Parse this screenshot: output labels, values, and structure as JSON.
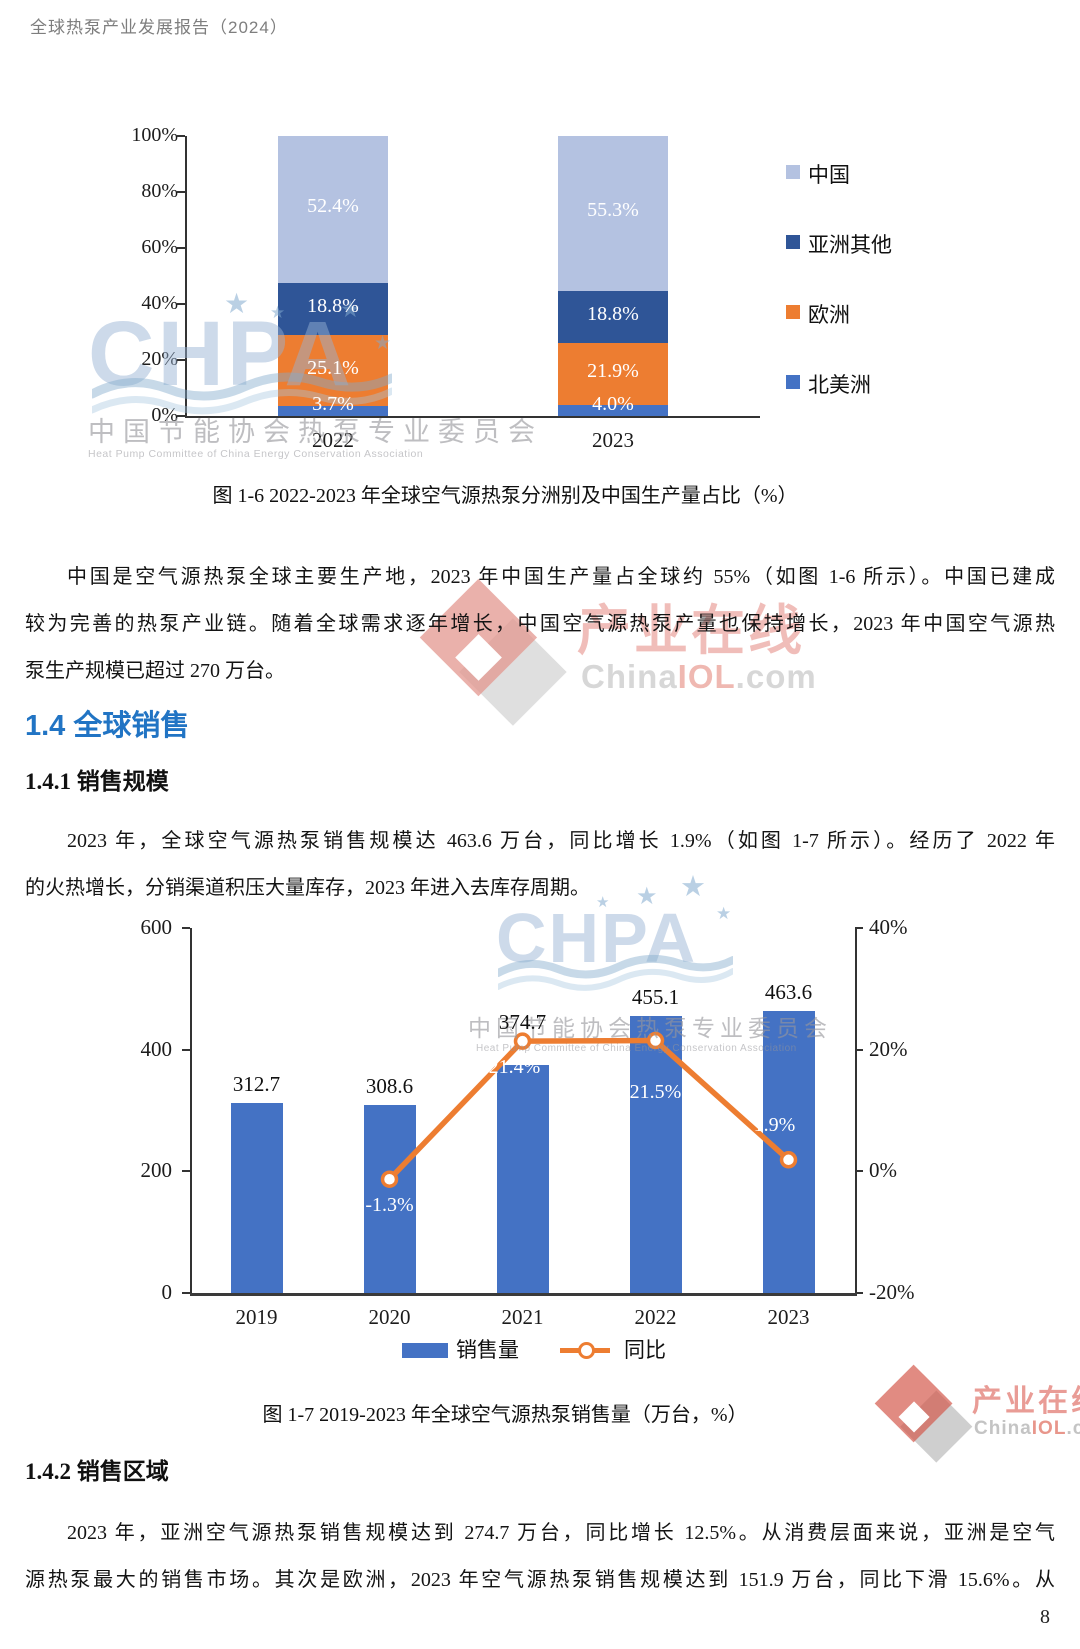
{
  "header": {
    "title": "全球热泵产业发展报告（2024）"
  },
  "page_number": "8",
  "watermark_chpa": {
    "logo": "CHPA",
    "star": "★",
    "org_cn": "中国节能协会热泵专业委员会",
    "org_en": "Heat Pump Committee of China Energy Conservation Association"
  },
  "watermark_iol": {
    "name": "产业在线",
    "domain_china": "China",
    "domain_iol": "IOL",
    "domain_com": ".com"
  },
  "sections": {
    "s14": "1.4 全球销售",
    "s141": "1.4.1 销售规模",
    "s142": "1.4.2 销售区域"
  },
  "paragraphs": {
    "p1": [
      "中国是空气源热泵全球主要生产地，2023 年中国生产量占全球约 55%（如图 1-6 所示）。中国已建成",
      "较为完善的热泵产业链。随着全球需求逐年增长，中国空气源热泵产量也保持增长，2023 年中国空气源热",
      "泵生产规模已超过 270 万台。"
    ],
    "p2": [
      "2023 年，全球空气源热泵销售规模达 463.6 万台，同比增长 1.9%（如图 1-7 所示）。经历了 2022 年",
      "的火热增长，分销渠道积压大量库存，2023 年进入去库存周期。"
    ],
    "p3": [
      "2023 年，亚洲空气源热泵销售规模达到 274.7 万台，同比增长 12.5%。从消费层面来说，亚洲是空气",
      "源热泵最大的销售市场。其次是欧洲，2023 年空气源热泵销售规模达到 151.9 万台，同比下滑 15.6%。从"
    ]
  },
  "captions": {
    "fig16": "图 1-6 2022-2023 年全球空气源热泵分洲别及中国生产量占比（%）",
    "fig17": "图 1-7 2019-2023 年全球空气源热泵销售量（万台，%）"
  },
  "chart_data": [
    {
      "type": "bar",
      "subtype": "stacked-100-percent",
      "title": "图 1-6 2022-2023 年全球空气源热泵分洲别及中国生产量占比（%）",
      "categories": [
        "2022",
        "2023"
      ],
      "series": [
        {
          "name": "北美洲",
          "color": "#4472C4",
          "values": [
            3.7,
            4.0
          ]
        },
        {
          "name": "欧洲",
          "color": "#ED7D31",
          "values": [
            25.1,
            21.9
          ]
        },
        {
          "name": "亚洲其他",
          "color": "#2F5597",
          "values": [
            18.8,
            18.8
          ]
        },
        {
          "name": "中国",
          "color": "#B4C2E1",
          "values": [
            52.4,
            55.3
          ]
        }
      ],
      "legend_order": [
        "中国",
        "亚洲其他",
        "欧洲",
        "北美洲"
      ],
      "y_ticks": [
        "100%",
        "80%",
        "60%",
        "40%",
        "20%",
        "0%"
      ],
      "ylim": [
        0,
        100
      ],
      "legend_position": "right",
      "grid": false
    },
    {
      "type": "bar+line",
      "title": "图 1-7 2019-2023 年全球空气源热泵销售量（万台，%）",
      "categories": [
        "2019",
        "2020",
        "2021",
        "2022",
        "2023"
      ],
      "bar_series": {
        "name": "销售量",
        "color": "#4472C4",
        "values": [
          312.7,
          308.6,
          374.7,
          455.1,
          463.6
        ]
      },
      "line_series": {
        "name": "同比",
        "color": "#ED7D31",
        "values": [
          null,
          -1.3,
          21.4,
          21.5,
          1.9
        ],
        "labels": [
          "",
          "-1.3%",
          "21.4%",
          "21.5%",
          "1.9%"
        ]
      },
      "y_left": {
        "ticks": [
          "600",
          "400",
          "200",
          "0"
        ],
        "min": 0,
        "max": 600
      },
      "y_right": {
        "ticks": [
          "40%",
          "20%",
          "0%",
          "-20%"
        ],
        "min": -20,
        "max": 40
      },
      "legend_position": "bottom",
      "grid": false
    }
  ]
}
